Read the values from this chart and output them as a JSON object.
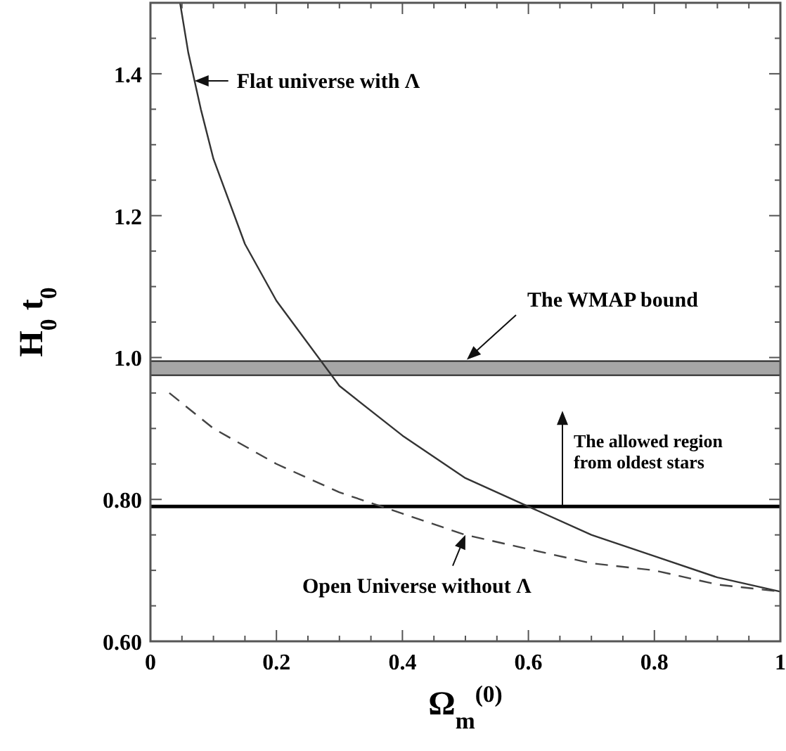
{
  "chart_data": {
    "type": "line",
    "xlabel": "Ω$_{m}$$^{(0)}$",
    "ylabel": "H$_{0}$ t$_{0}$",
    "xlim": [
      0,
      1
    ],
    "ylim": [
      0.6,
      1.5
    ],
    "xticks": [
      0,
      {
        "value": 0.05,
        "label": null
      },
      {
        "value": 0.1,
        "label": null
      },
      {
        "value": 0.15,
        "label": null
      },
      0.2,
      {
        "value": 0.25,
        "label": null
      },
      {
        "value": 0.3,
        "label": null
      },
      {
        "value": 0.35,
        "label": null
      },
      0.4,
      {
        "value": 0.45,
        "label": null
      },
      {
        "value": 0.5,
        "label": null
      },
      {
        "value": 0.55,
        "label": null
      },
      0.6,
      {
        "value": 0.65,
        "label": null
      },
      {
        "value": 0.7,
        "label": null
      },
      {
        "value": 0.75,
        "label": null
      },
      0.8,
      {
        "value": 0.85,
        "label": null
      },
      {
        "value": 0.9,
        "label": null
      },
      {
        "value": 0.95,
        "label": null
      },
      1
    ],
    "yticks": [
      {
        "value": 0.6,
        "label": "0.60"
      },
      {
        "value": 0.65,
        "label": null
      },
      {
        "value": 0.7,
        "label": null
      },
      {
        "value": 0.75,
        "label": null
      },
      {
        "value": 0.8,
        "label": "0.80"
      },
      {
        "value": 0.85,
        "label": null
      },
      {
        "value": 0.9,
        "label": null
      },
      {
        "value": 0.95,
        "label": null
      },
      {
        "value": 1.0,
        "label": "1.0"
      },
      {
        "value": 1.05,
        "label": null
      },
      {
        "value": 1.1,
        "label": null
      },
      {
        "value": 1.15,
        "label": null
      },
      1.2,
      {
        "value": 1.25,
        "label": null
      },
      {
        "value": 1.3,
        "label": null
      },
      {
        "value": 1.35,
        "label": null
      },
      1.4,
      {
        "value": 1.45,
        "label": null
      }
    ],
    "grid": false,
    "marker": "none",
    "series": [
      {
        "color": "#333333",
        "line_style": "solid",
        "x": [
          0.047,
          0.06,
          0.08,
          0.1,
          0.15,
          0.2,
          0.3,
          0.4,
          0.5,
          0.6,
          0.7,
          0.8,
          0.9,
          1.0
        ],
        "values": [
          1.5,
          1.43,
          1.35,
          1.28,
          1.16,
          1.08,
          0.96,
          0.89,
          0.83,
          0.79,
          0.75,
          0.72,
          0.69,
          0.67
        ]
      },
      {
        "color": "#444444",
        "line_style": "dashed",
        "x": [
          0.03,
          0.1,
          0.2,
          0.3,
          0.4,
          0.5,
          0.6,
          0.7,
          0.8,
          0.9,
          1.0
        ],
        "values": [
          0.95,
          0.9,
          0.85,
          0.81,
          0.78,
          0.75,
          0.73,
          0.71,
          0.7,
          0.68,
          0.67
        ]
      }
    ],
    "annotations": [
      {
        "text": "Flat universe with Λ",
        "x": 0.07,
        "y": 1.39
      },
      {
        "text": "Open Universe without Λ",
        "x": 0.5,
        "y": 0.75
      }
    ],
    "bands": [
      {
        "axis": "y",
        "from": 0.975,
        "to": 0.995,
        "label": "The WMAP bound",
        "color": "#a6a6a6"
      }
    ],
    "ref_lines": [
      {
        "axis": "y",
        "value": 0.79,
        "label": "The allowed region from oldest stars",
        "color": "#000000"
      }
    ]
  }
}
